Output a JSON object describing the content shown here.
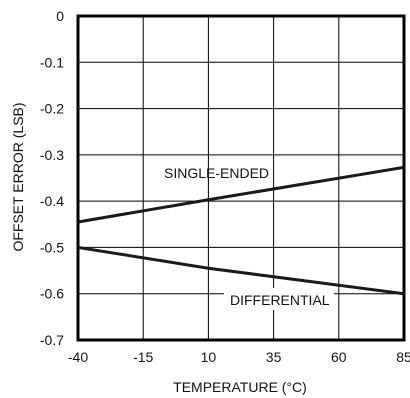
{
  "chart_data": {
    "type": "line",
    "title": "",
    "xlabel": "TEMPERATURE (°C)",
    "ylabel": "OFFSET ERROR (LSB)",
    "xlim": [
      -40,
      85
    ],
    "ylim": [
      -0.7,
      0
    ],
    "x_ticks": [
      -40,
      -15,
      10,
      35,
      60,
      85
    ],
    "x_tick_labels": [
      "-40",
      "-15",
      "10",
      "35",
      "60",
      "85"
    ],
    "y_ticks": [
      0,
      -0.1,
      -0.2,
      -0.3,
      -0.4,
      -0.5,
      -0.6,
      -0.7
    ],
    "y_tick_labels": [
      "0",
      "-0.1",
      "-0.2",
      "-0.3",
      "-0.4",
      "-0.5",
      "-0.6",
      "-0.7"
    ],
    "grid": true,
    "series": [
      {
        "name": "SINGLE-ENDED",
        "x": [
          -40,
          10,
          85
        ],
        "y": [
          -0.445,
          -0.397,
          -0.327
        ],
        "color": "#1a1a1a"
      },
      {
        "name": "DIFFERENTIAL",
        "x": [
          -40,
          10,
          85
        ],
        "y": [
          -0.5,
          -0.545,
          -0.6
        ],
        "color": "#1a1a1a"
      }
    ]
  }
}
